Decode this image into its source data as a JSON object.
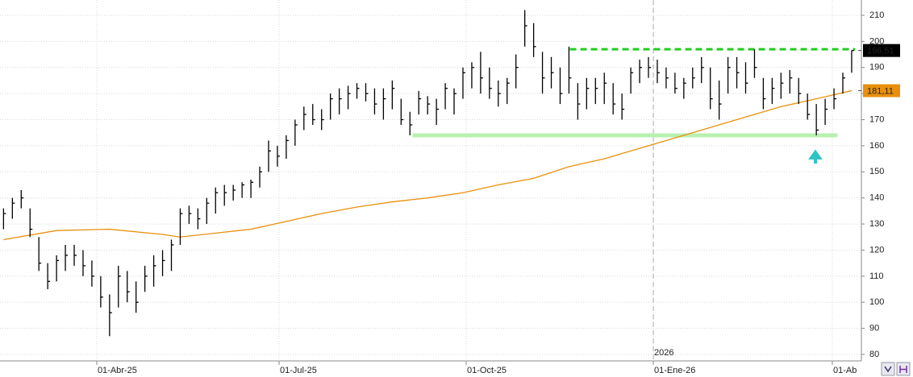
{
  "chart_data": {
    "type": "ohlc",
    "high": [
      136,
      140,
      143,
      136,
      125,
      115,
      118,
      122,
      122,
      120,
      116,
      110,
      103,
      114,
      112,
      108,
      114,
      118,
      120,
      124,
      136,
      137,
      136,
      140,
      144,
      145,
      145,
      146,
      147,
      152,
      162,
      160,
      164,
      170,
      175,
      176,
      174,
      180,
      182,
      183,
      184,
      184,
      182,
      182,
      185,
      178,
      173,
      181,
      179,
      178,
      184,
      182,
      190,
      192,
      196,
      190,
      185,
      186,
      195,
      212,
      207,
      196,
      194,
      190,
      198,
      184,
      186,
      186,
      188,
      184,
      180,
      190,
      193,
      194,
      193,
      190,
      188,
      186,
      190,
      194,
      190,
      185,
      194,
      194,
      192,
      197,
      186,
      186,
      188,
      189,
      186,
      180,
      176,
      178,
      182,
      188,
      196.51
    ],
    "low": [
      128,
      132,
      136,
      125,
      112,
      105,
      108,
      112,
      114,
      110,
      106,
      98,
      87,
      98,
      100,
      96,
      104,
      106,
      110,
      112,
      122,
      130,
      128,
      130,
      134,
      137,
      139,
      140,
      140,
      144,
      150,
      152,
      155,
      160,
      166,
      168,
      166,
      170,
      172,
      174,
      178,
      177,
      172,
      170,
      174,
      168,
      164,
      172,
      172,
      168,
      174,
      172,
      178,
      182,
      180,
      178,
      175,
      176,
      182,
      198,
      194,
      180,
      182,
      176,
      180,
      170,
      174,
      176,
      176,
      172,
      170,
      180,
      184,
      186,
      184,
      182,
      180,
      178,
      182,
      184,
      174,
      170,
      180,
      182,
      180,
      186,
      174,
      176,
      178,
      180,
      176,
      170,
      164,
      168,
      174,
      180,
      188
    ],
    "close": [
      134,
      138,
      140,
      128,
      115,
      108,
      116,
      118,
      118,
      114,
      110,
      102,
      96,
      110,
      104,
      100,
      110,
      114,
      116,
      122,
      134,
      134,
      132,
      138,
      142,
      142,
      143,
      145,
      146,
      150,
      158,
      156,
      162,
      168,
      172,
      170,
      170,
      178,
      178,
      180,
      182,
      180,
      176,
      178,
      182,
      170,
      168,
      178,
      176,
      174,
      182,
      180,
      188,
      190,
      186,
      182,
      180,
      184,
      190,
      206,
      198,
      186,
      188,
      180,
      186,
      176,
      182,
      182,
      184,
      176,
      174,
      188,
      190,
      190,
      188,
      186,
      182,
      184,
      186,
      190,
      178,
      176,
      190,
      188,
      184,
      190,
      178,
      182,
      184,
      186,
      180,
      172,
      166,
      174,
      178,
      186,
      196.51
    ],
    "color": "#000000",
    "last_price": {
      "value": 196.51,
      "label": "196,51"
    },
    "moving_average": {
      "color": "#e8900c",
      "x": [
        0,
        6,
        12,
        18,
        20,
        24,
        28,
        32,
        36,
        40,
        44,
        48,
        52,
        56,
        60,
        64,
        68,
        72,
        76,
        80,
        84,
        88,
        92,
        96
      ],
      "values": [
        124,
        127.5,
        128,
        126,
        125,
        126.5,
        128,
        131,
        134,
        136.5,
        138.5,
        140,
        142,
        145,
        147.5,
        152,
        155,
        159,
        163,
        167,
        171,
        175,
        178,
        181.11
      ],
      "last": {
        "value": 181.11,
        "label": "181,11"
      }
    },
    "levels": [
      {
        "value": 197,
        "from": 64.1,
        "to": 96.4,
        "color": "#22cc22",
        "dashed": true
      },
      {
        "value": 164,
        "from": 46.3,
        "to": 94.4,
        "color": "#b8f0b0",
        "dashed": false
      }
    ],
    "year_marker": {
      "value": 73.55,
      "label": "2026"
    },
    "xlim": [
      -0.4,
      97.1
    ],
    "xticks": [
      {
        "value": 10.55,
        "label": "01-Abr-25"
      },
      {
        "value": 31.19,
        "label": "01-Jul-25"
      },
      {
        "value": 52.37,
        "label": "01-Oct-25"
      },
      {
        "value": 73.55,
        "label": "01-Ene-26"
      },
      {
        "value": 93.81,
        "label": "01-Ab"
      }
    ],
    "ylim": [
      80,
      210
    ],
    "yticks": [
      80,
      90,
      100,
      110,
      120,
      130,
      140,
      150,
      160,
      170,
      180,
      190,
      200,
      210
    ],
    "grid": true
  }
}
